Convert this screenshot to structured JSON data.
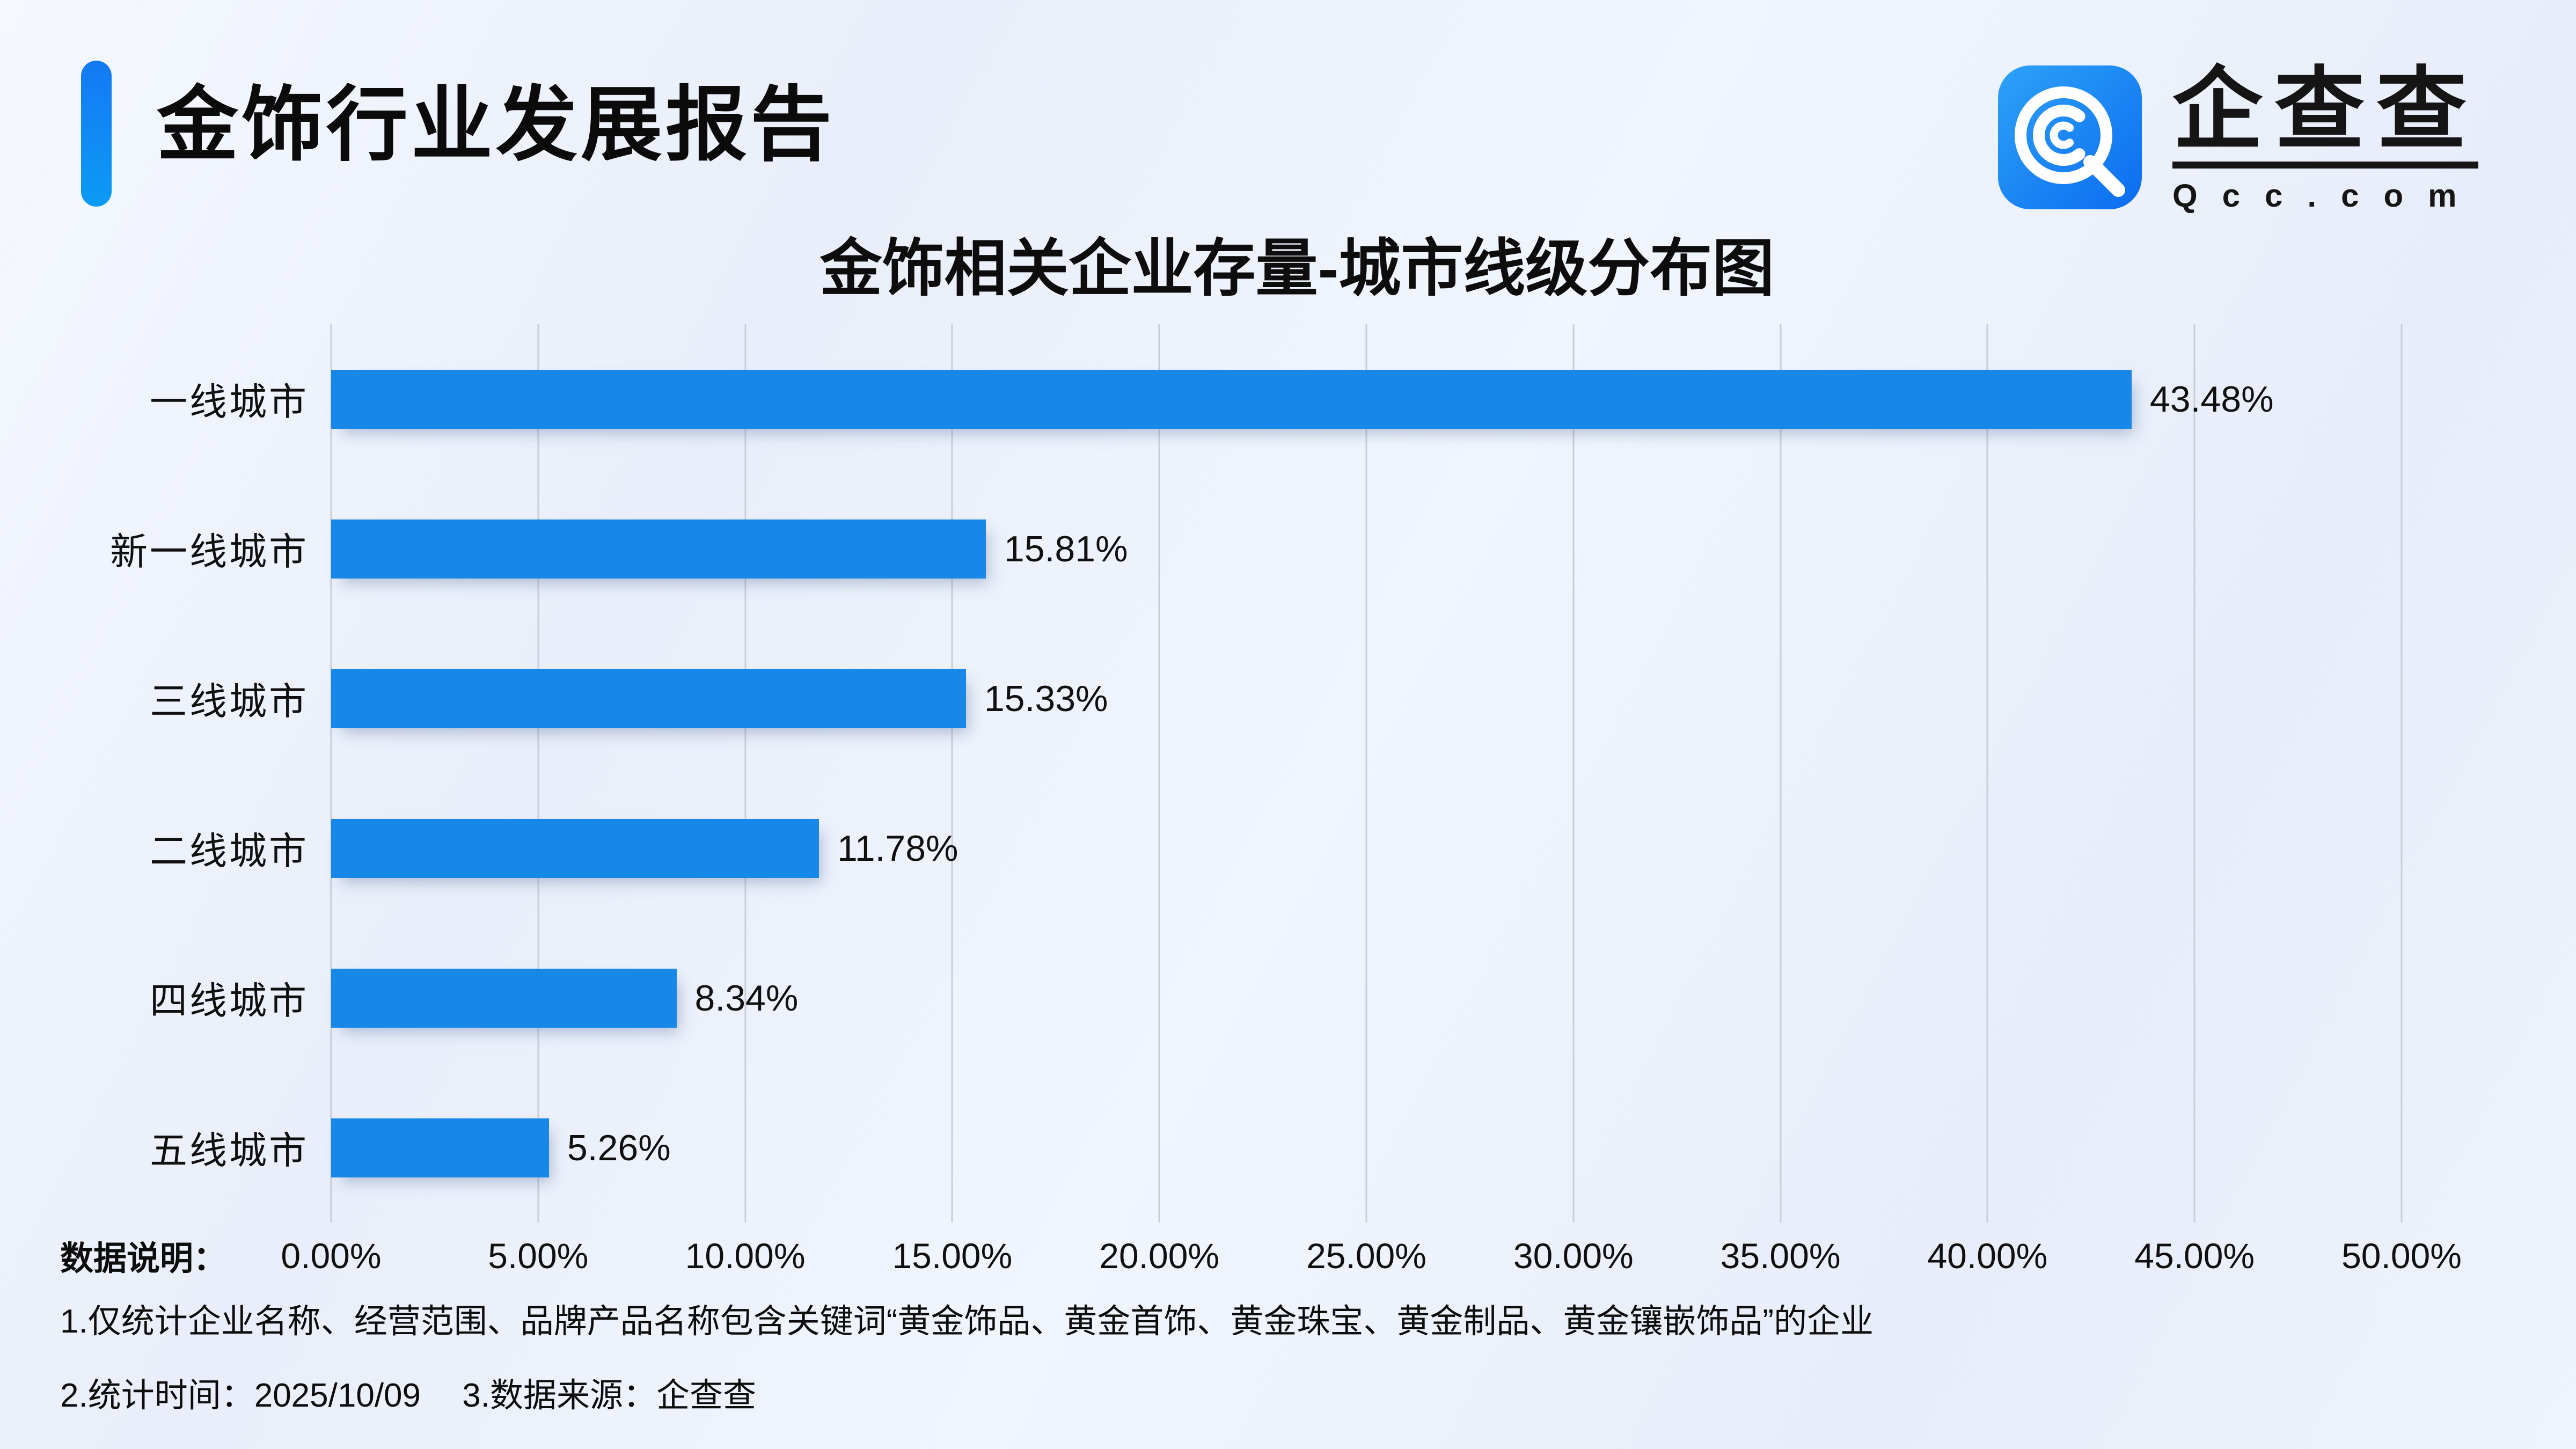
{
  "header": {
    "title": "金饰行业发展报告"
  },
  "logo": {
    "name_cn": "企查查",
    "domain": "Qcc.com"
  },
  "chart_data": {
    "type": "bar",
    "orientation": "horizontal",
    "title": "金饰相关企业存量-城市线级分布图",
    "categories": [
      "一线城市",
      "新一线城市",
      "三线城市",
      "二线城市",
      "四线城市",
      "五线城市"
    ],
    "values": [
      43.48,
      15.81,
      15.33,
      11.78,
      8.34,
      5.26
    ],
    "value_labels": [
      "43.48%",
      "15.81%",
      "15.33%",
      "11.78%",
      "8.34%",
      "5.26%"
    ],
    "x_ticks": [
      "0.00%",
      "5.00%",
      "10.00%",
      "15.00%",
      "20.00%",
      "25.00%",
      "30.00%",
      "35.00%",
      "40.00%",
      "45.00%",
      "50.00%"
    ],
    "xlim": [
      0,
      50
    ],
    "grid": true,
    "legend": false,
    "bar_color": "#1787e8",
    "gridline_color": "#c9cdd6"
  },
  "notes": {
    "label": "数据说明：",
    "line1": "1.仅统计企业名称、经营范围、品牌产品名称包含关键词“黄金饰品、黄金首饰、黄金珠宝、黄金制品、黄金镶嵌饰品”的企业",
    "line2_time": "2.统计时间：2025/10/09",
    "line2_source": "3.数据来源：企查查"
  },
  "colors": {
    "bar": "#1787e8",
    "accent_top": "#1479f3",
    "accent_bottom": "#0c9bf5",
    "logo_blue_light": "#2ea2f8",
    "logo_blue_dark": "#0b6cf0",
    "gridline": "#c9cdd6",
    "text": "#111111",
    "background": "#edf1fa"
  }
}
